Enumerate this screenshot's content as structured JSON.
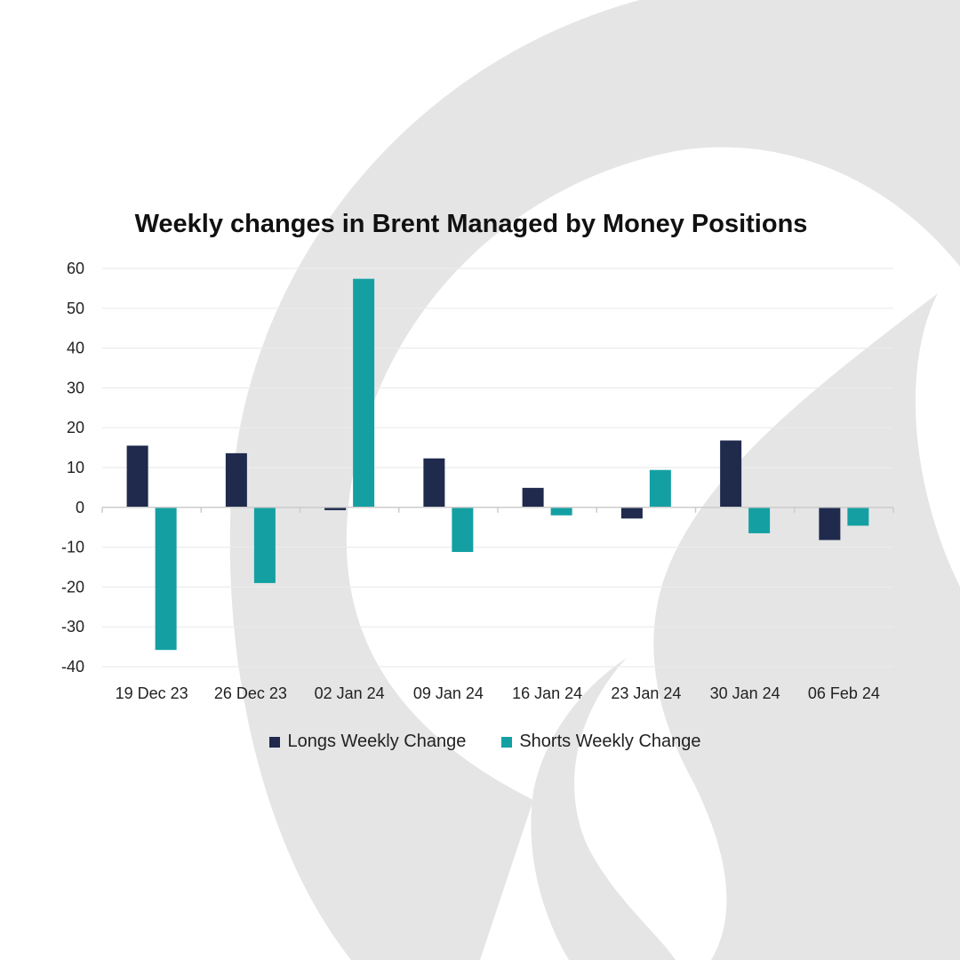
{
  "chart_data": {
    "type": "bar",
    "title": "Weekly changes in Brent Managed by Money Positions",
    "categories": [
      "19 Dec 23",
      "26 Dec 23",
      "02 Jan 24",
      "09 Jan 24",
      "16 Jan 24",
      "23 Jan 24",
      "30 Jan 24",
      "06 Feb 24"
    ],
    "series": [
      {
        "name": "Longs Weekly Change",
        "color": "#1f2a4d",
        "values": [
          15.5,
          13.6,
          -0.7,
          12.3,
          4.9,
          -2.8,
          16.8,
          -8.2
        ]
      },
      {
        "name": "Shorts Weekly Change",
        "color": "#14a0a3",
        "values": [
          -35.8,
          -19.0,
          57.4,
          -11.2,
          -2.0,
          9.4,
          -6.5,
          -4.6
        ]
      }
    ],
    "yticks": [
      60,
      50,
      40,
      30,
      20,
      10,
      0,
      -10,
      -20,
      -30,
      -40
    ],
    "ylim": [
      -40,
      60
    ],
    "grid": true,
    "legend_position": "bottom"
  }
}
